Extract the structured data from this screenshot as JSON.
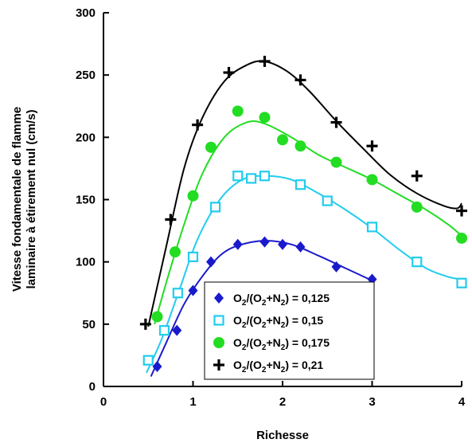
{
  "chart_data": {
    "type": "scatter",
    "xlabel": "Richesse",
    "ylabel_lines": [
      "Vitesse fondamentale de flamme",
      "laminaire à étirement nul (cm/s)"
    ],
    "xlim": [
      0,
      4
    ],
    "ylim": [
      0,
      300
    ],
    "x_ticks": [
      0,
      1,
      2,
      3,
      4
    ],
    "y_ticks": [
      0,
      50,
      100,
      150,
      200,
      250,
      300
    ],
    "x_tick_labels": [
      "0",
      "1",
      "2",
      "3",
      "4"
    ],
    "y_tick_labels": [
      "0",
      "50",
      "100",
      "150",
      "200",
      "250",
      "300"
    ],
    "legend_position": "bottom-center",
    "series": [
      {
        "name": "O2/(O2+N2) = 0,125",
        "legend_label": {
          "pre": "O",
          "sub1": "2",
          "mid": "/(O",
          "sub2": "2",
          "mid2": "+N",
          "sub3": "2",
          "post": ") = 0,125"
        },
        "marker": "diamond-filled",
        "color": "#1a1acc",
        "points": [
          [
            0.6,
            16
          ],
          [
            0.82,
            45
          ],
          [
            1.0,
            77
          ],
          [
            1.2,
            100
          ],
          [
            1.5,
            114
          ],
          [
            1.8,
            116
          ],
          [
            2.0,
            114
          ],
          [
            2.2,
            112
          ],
          [
            2.6,
            96
          ],
          [
            3.0,
            86
          ]
        ],
        "curve": [
          [
            0.53,
            8
          ],
          [
            0.7,
            35
          ],
          [
            0.9,
            66
          ],
          [
            1.1,
            88
          ],
          [
            1.3,
            105
          ],
          [
            1.5,
            113
          ],
          [
            1.8,
            117
          ],
          [
            2.1,
            114
          ],
          [
            2.4,
            105
          ],
          [
            2.7,
            95
          ],
          [
            3.0,
            85
          ]
        ]
      },
      {
        "name": "O2/(O2+N2) = 0,15",
        "legend_label": {
          "pre": "O",
          "sub1": "2",
          "mid": "/(O",
          "sub2": "2",
          "mid2": "+N",
          "sub3": "2",
          "post": ") = 0,15"
        },
        "marker": "square-open",
        "color": "#22ccee",
        "points": [
          [
            0.5,
            21
          ],
          [
            0.68,
            45
          ],
          [
            0.83,
            75
          ],
          [
            1.0,
            104
          ],
          [
            1.25,
            144
          ],
          [
            1.5,
            169
          ],
          [
            1.65,
            167
          ],
          [
            1.8,
            169
          ],
          [
            2.2,
            162
          ],
          [
            2.5,
            149
          ],
          [
            3.0,
            128
          ],
          [
            3.5,
            100
          ],
          [
            4.0,
            83
          ]
        ],
        "curve": [
          [
            0.48,
            11
          ],
          [
            0.65,
            38
          ],
          [
            0.85,
            78
          ],
          [
            1.05,
            118
          ],
          [
            1.3,
            150
          ],
          [
            1.55,
            166
          ],
          [
            1.8,
            169
          ],
          [
            2.1,
            166
          ],
          [
            2.4,
            155
          ],
          [
            2.7,
            142
          ],
          [
            3.0,
            127
          ],
          [
            3.3,
            110
          ],
          [
            3.6,
            95
          ],
          [
            3.85,
            88
          ],
          [
            4.0,
            86
          ]
        ]
      },
      {
        "name": "O2/(O2+N2) = 0,175",
        "legend_label": {
          "pre": "O",
          "sub1": "2",
          "mid": "/(O",
          "sub2": "2",
          "mid2": "+N",
          "sub3": "2",
          "post": ") = 0,175"
        },
        "marker": "circle-filled",
        "color": "#22dd22",
        "points": [
          [
            0.6,
            56
          ],
          [
            0.8,
            108
          ],
          [
            1.0,
            153
          ],
          [
            1.2,
            192
          ],
          [
            1.5,
            221
          ],
          [
            1.8,
            216
          ],
          [
            2.0,
            198
          ],
          [
            2.2,
            193
          ],
          [
            2.6,
            180
          ],
          [
            3.0,
            166
          ],
          [
            3.5,
            144
          ],
          [
            4.0,
            119
          ]
        ],
        "curve": [
          [
            0.57,
            50
          ],
          [
            0.72,
            88
          ],
          [
            0.9,
            130
          ],
          [
            1.1,
            170
          ],
          [
            1.35,
            200
          ],
          [
            1.6,
            212
          ],
          [
            1.8,
            211
          ],
          [
            2.1,
            200
          ],
          [
            2.4,
            186
          ],
          [
            2.7,
            176
          ],
          [
            3.0,
            166
          ],
          [
            3.3,
            154
          ],
          [
            3.6,
            142
          ],
          [
            3.85,
            130
          ],
          [
            4.0,
            121
          ]
        ]
      },
      {
        "name": "O2/(O2+N2) = 0,21",
        "legend_label": {
          "pre": "O",
          "sub1": "2",
          "mid": "/(O",
          "sub2": "2",
          "mid2": "+N",
          "sub3": "2",
          "post": ") = 0,21"
        },
        "marker": "plus",
        "color": "#000000",
        "points": [
          [
            0.47,
            50
          ],
          [
            0.75,
            134
          ],
          [
            1.05,
            210
          ],
          [
            1.4,
            252
          ],
          [
            1.8,
            261
          ],
          [
            2.2,
            246
          ],
          [
            2.6,
            212
          ],
          [
            3.0,
            193
          ],
          [
            3.5,
            169
          ],
          [
            4.0,
            141
          ]
        ],
        "curve": [
          [
            0.5,
            48
          ],
          [
            0.7,
            112
          ],
          [
            0.9,
            175
          ],
          [
            1.1,
            215
          ],
          [
            1.35,
            245
          ],
          [
            1.6,
            258
          ],
          [
            1.8,
            261
          ],
          [
            2.05,
            253
          ],
          [
            2.3,
            237
          ],
          [
            2.6,
            213
          ],
          [
            2.9,
            191
          ],
          [
            3.2,
            170
          ],
          [
            3.5,
            155
          ],
          [
            3.8,
            145
          ],
          [
            3.95,
            143
          ],
          [
            4.0,
            147
          ]
        ]
      }
    ]
  }
}
